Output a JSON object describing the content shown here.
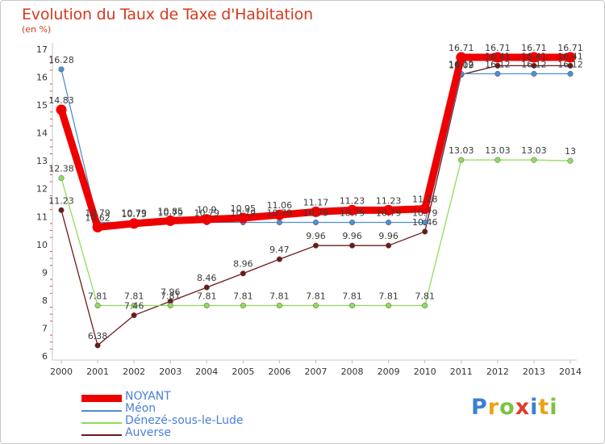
{
  "chart_data": {
    "type": "line",
    "title": "Evolution du Taux de Taxe d'Habitation",
    "subtitle": "(en %)",
    "x": [
      "2000",
      "2001",
      "2002",
      "2003",
      "2004",
      "2005",
      "2006",
      "2007",
      "2008",
      "2009",
      "2010",
      "2011",
      "2012",
      "2013",
      "2014"
    ],
    "ylim": [
      6,
      17
    ],
    "yticks": [
      "6",
      "7",
      "8",
      "9",
      "10",
      "11",
      "12",
      "13",
      "14",
      "15",
      "16",
      "17"
    ],
    "grid": false,
    "series": [
      {
        "name": "NOYANT",
        "color": "#ee0000",
        "values": [
          14.83,
          10.62,
          10.75,
          10.85,
          10.9,
          10.95,
          11.06,
          11.17,
          11.23,
          11.23,
          11.28,
          16.71,
          16.71,
          16.71,
          16.71
        ],
        "labels": [
          "14.83",
          "10.62",
          "10.75",
          "10.85",
          "10.9",
          "10.95",
          "11.06",
          "11.17",
          "11.23",
          "11.23",
          "11.28",
          "16.71",
          "16.71",
          "16.71",
          "16.71"
        ]
      },
      {
        "name": "Méon",
        "color": "#4e8fd4",
        "values": [
          16.28,
          10.79,
          10.79,
          10.79,
          10.79,
          10.79,
          10.79,
          10.79,
          10.79,
          10.79,
          10.79,
          16.12,
          16.12,
          16.12,
          16.12
        ],
        "labels": [
          "16.28",
          "10.79",
          "10.79",
          "10.79",
          "10.79",
          "10.79",
          "10.79",
          "10.79",
          "10.79",
          "10.79",
          "10.79",
          "16.12",
          "16.12",
          "16.12",
          "16.12"
        ]
      },
      {
        "name": "Dénezé-sous-le-Lude",
        "color": "#8fdc5a",
        "values": [
          12.38,
          7.81,
          7.81,
          7.81,
          7.81,
          7.81,
          7.81,
          7.81,
          7.81,
          7.81,
          7.81,
          13.03,
          13.03,
          13.03,
          13.0
        ],
        "labels": [
          "12.38",
          "7.81",
          "7.81",
          "7.81",
          "7.81",
          "7.81",
          "7.81",
          "7.81",
          "7.81",
          "7.81",
          "7.81",
          "13.03",
          "13.03",
          "13.03",
          "13"
        ]
      },
      {
        "name": "Auverse",
        "color": "#6e1a1a",
        "values": [
          11.23,
          6.38,
          7.46,
          7.96,
          8.46,
          8.96,
          9.47,
          9.96,
          9.96,
          9.96,
          10.46,
          16.09,
          16.41,
          16.41,
          16.41
        ],
        "labels": [
          "11.23",
          "6.38",
          "7.46",
          "7.96",
          "8.46",
          "8.96",
          "9.47",
          "9.96",
          "9.96",
          "9.96",
          "10.46",
          "16.09",
          "16.41",
          "16.41",
          "16.41"
        ]
      }
    ]
  },
  "legend": [
    {
      "label": "NOYANT",
      "color": "#ee0000"
    },
    {
      "label": "Méon",
      "color": "#4e8fd4"
    },
    {
      "label": "Dénezé-sous-le-Lude",
      "color": "#8fdc5a"
    },
    {
      "label": "Auverse",
      "color": "#6e1a1a"
    }
  ],
  "logo": {
    "letters": [
      "P",
      "r",
      "o",
      "x",
      "i",
      "t",
      "i"
    ],
    "colors": [
      "#3b7fd6",
      "#e8a317",
      "#7cc243",
      "#e23b2a",
      "#3b7fd6",
      "#e8a317",
      "#7cc243"
    ]
  }
}
